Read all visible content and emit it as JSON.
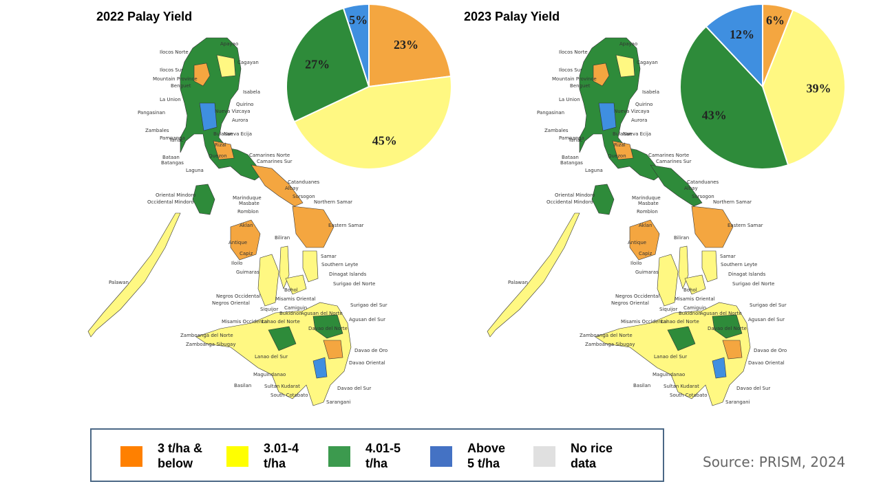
{
  "colors": {
    "orange": "#F4A640",
    "yellow": "#FFF882",
    "green": "#2E8B3A",
    "blue": "#3F8FE0",
    "legend_orange": "#FF8000",
    "legend_yellow": "#FFFF00",
    "legend_green": "#3C9A4E",
    "legend_blue": "#4472C4",
    "legend_grey": "#E0E0E0"
  },
  "panels": [
    {
      "title": "2022 Palay Yield",
      "pie": [
        {
          "label": "23%",
          "value": 23,
          "color_key": "orange"
        },
        {
          "label": "45%",
          "value": 45,
          "color_key": "yellow"
        },
        {
          "label": "27%",
          "value": 27,
          "color_key": "green"
        },
        {
          "label": "5%",
          "value": 5,
          "color_key": "blue"
        }
      ]
    },
    {
      "title": "2023 Palay Yield",
      "pie": [
        {
          "label": "6%",
          "value": 6,
          "color_key": "orange"
        },
        {
          "label": "39%",
          "value": 39,
          "color_key": "yellow"
        },
        {
          "label": "43%",
          "value": 43,
          "color_key": "green"
        },
        {
          "label": "12%",
          "value": 12,
          "color_key": "blue"
        }
      ]
    }
  ],
  "map_labels": [
    "Apayao",
    "Ilocos Norte",
    "Cagayan",
    "Ilocos Sur",
    "Mountain Province",
    "Isabela",
    "Benguet",
    "La Union",
    "Quirino",
    "Nueva Vizcaya",
    "Pangasinan",
    "Aurora",
    "Zambales",
    "Bulacan",
    "Nueva Ecija",
    "Pampanga",
    "Tarlac",
    "Rizal",
    "Bataan",
    "Batangas",
    "Quezon",
    "Laguna",
    "Camarines Norte",
    "Camarines Sur",
    "Catanduanes",
    "Albay",
    "Oriental Mindoro",
    "Occidental Mindoro",
    "Marinduque",
    "Masbate",
    "Sorsogon",
    "Romblon",
    "Northern Samar",
    "Aklan",
    "Eastern Samar",
    "Biliran",
    "Antique",
    "Capiz",
    "Samar",
    "Iloilo",
    "Leyte",
    "Southern Leyte",
    "Guimaras",
    "Dinagat Islands",
    "Palawan",
    "Surigao del Norte",
    "Bohol",
    "Negros Occidental",
    "Cebu",
    "Negros Oriental",
    "Misamis Oriental",
    "Surigao del Sur",
    "Siquijor",
    "Camiguin",
    "Bukidnon",
    "Agusan del Norte",
    "Misamis Occidental",
    "Agusan del Sur",
    "Zamboanga del Norte",
    "Davao del Norte",
    "Zamboanga Sibugay",
    "Davao de Oro",
    "Lanao del Sur",
    "Davao Oriental",
    "Maguindanao",
    "Basilan",
    "Sultan Kudarat",
    "Davao del Sur",
    "South Cotabato",
    "Sarangani",
    "Lanao del Norte"
  ],
  "legend": [
    {
      "line1": "3 t/ha &",
      "line2": "below",
      "color_key": "legend_orange"
    },
    {
      "line1": "3.01-4",
      "line2": "t/ha",
      "color_key": "legend_yellow"
    },
    {
      "line1": "4.01-5",
      "line2": "t/ha",
      "color_key": "legend_green"
    },
    {
      "line1": "Above",
      "line2": "5 t/ha",
      "color_key": "legend_blue"
    },
    {
      "line1": "No rice",
      "line2": "data",
      "color_key": "legend_grey"
    }
  ],
  "source": "Source: PRISM, 2024"
}
